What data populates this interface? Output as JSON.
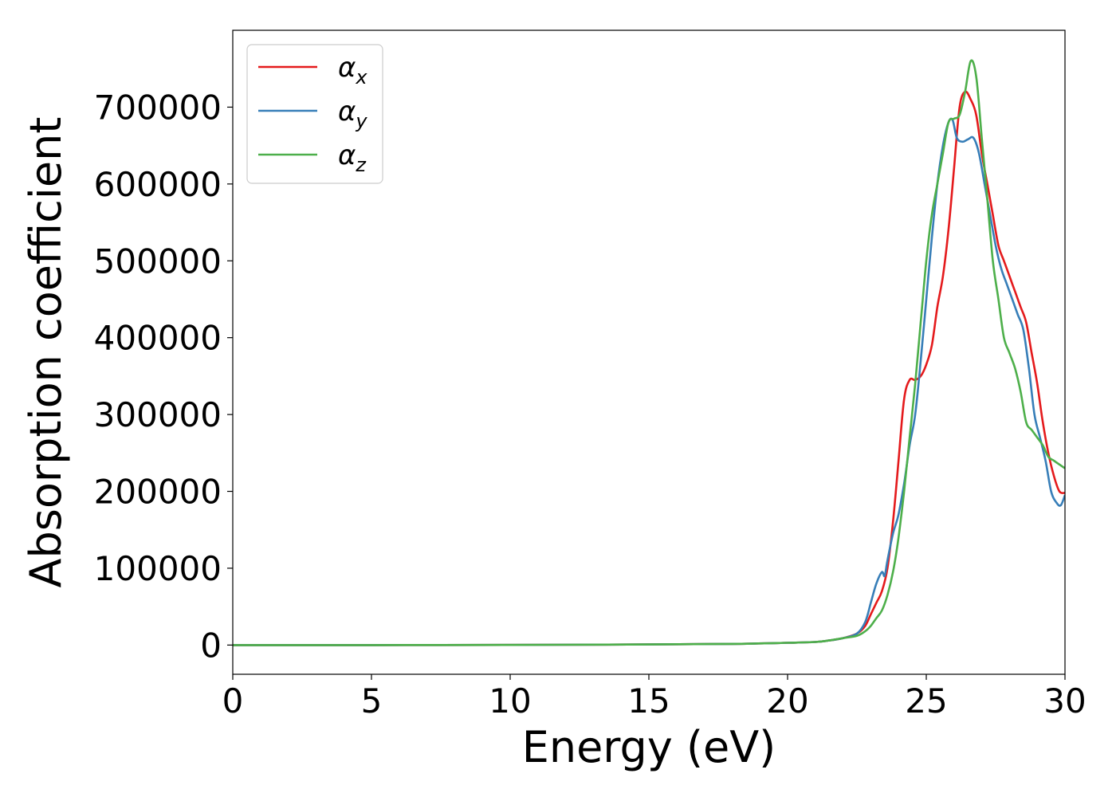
{
  "chart_data": {
    "type": "line",
    "xlabel": "Energy (eV)",
    "ylabel": "Absorption coefficient",
    "xlim": [
      0,
      30
    ],
    "ylim": [
      -38000,
      800000
    ],
    "xticks": [
      0,
      5,
      10,
      15,
      20,
      25,
      30
    ],
    "xtick_labels": [
      "0",
      "5",
      "10",
      "15",
      "20",
      "25",
      "30"
    ],
    "yticks": [
      0,
      100000,
      200000,
      300000,
      400000,
      500000,
      600000,
      700000
    ],
    "ytick_labels": [
      "0",
      "100000",
      "200000",
      "300000",
      "400000",
      "500000",
      "600000",
      "700000"
    ],
    "grid": false,
    "legend_position": "top-left",
    "series": [
      {
        "name": "α_x",
        "label_main": "α",
        "label_sub": "x",
        "color": "#e41a1c",
        "x": [
          0,
          5,
          10,
          15,
          18,
          20,
          21,
          21.5,
          22,
          22.5,
          22.8,
          23.0,
          23.2,
          23.4,
          23.6,
          23.8,
          24.0,
          24.2,
          24.4,
          24.6,
          24.8,
          25.0,
          25.2,
          25.4,
          25.6,
          25.8,
          26.0,
          26.2,
          26.4,
          26.6,
          26.8,
          27.0,
          27.2,
          27.4,
          27.6,
          27.8,
          28.0,
          28.2,
          28.4,
          28.6,
          28.8,
          29.0,
          29.2,
          29.4,
          29.6,
          29.8,
          30.0
        ],
        "y": [
          0,
          0,
          200,
          800,
          1500,
          3000,
          4000,
          6000,
          9000,
          15000,
          25000,
          40000,
          55000,
          70000,
          100000,
          160000,
          240000,
          320000,
          345000,
          345000,
          350000,
          365000,
          390000,
          440000,
          480000,
          540000,
          620000,
          700000,
          720000,
          710000,
          690000,
          640000,
          600000,
          560000,
          520000,
          500000,
          480000,
          460000,
          440000,
          420000,
          380000,
          340000,
          290000,
          250000,
          220000,
          200000,
          198000
        ]
      },
      {
        "name": "α_y",
        "label_main": "α",
        "label_sub": "y",
        "color": "#377eb8",
        "x": [
          0,
          5,
          10,
          15,
          18,
          20,
          21,
          21.5,
          22,
          22.5,
          22.8,
          23.0,
          23.2,
          23.4,
          23.5,
          23.6,
          23.8,
          24.0,
          24.2,
          24.4,
          24.6,
          24.8,
          25.0,
          25.2,
          25.4,
          25.6,
          25.8,
          25.95,
          26.1,
          26.3,
          26.5,
          26.7,
          26.9,
          27.1,
          27.3,
          27.5,
          27.7,
          27.9,
          28.1,
          28.3,
          28.5,
          28.7,
          28.9,
          29.1,
          29.3,
          29.5,
          29.7,
          29.85,
          30.0
        ],
        "y": [
          0,
          0,
          200,
          800,
          1500,
          3000,
          4000,
          6000,
          9000,
          15000,
          30000,
          55000,
          80000,
          95000,
          90000,
          110000,
          145000,
          170000,
          210000,
          260000,
          300000,
          370000,
          450000,
          530000,
          600000,
          650000,
          680000,
          683000,
          660000,
          655000,
          658000,
          660000,
          640000,
          600000,
          560000,
          520000,
          490000,
          470000,
          450000,
          430000,
          410000,
          360000,
          300000,
          270000,
          240000,
          200000,
          185000,
          182000,
          195000
        ]
      },
      {
        "name": "α_z",
        "label_main": "α",
        "label_sub": "z",
        "color": "#4daf4a",
        "x": [
          0,
          5,
          10,
          15,
          18,
          20,
          21,
          21.5,
          22,
          22.5,
          22.8,
          23.0,
          23.2,
          23.4,
          23.6,
          23.8,
          24.0,
          24.2,
          24.4,
          24.6,
          24.8,
          25.0,
          25.2,
          25.4,
          25.6,
          25.8,
          26.0,
          26.2,
          26.4,
          26.6,
          26.8,
          27.0,
          27.2,
          27.4,
          27.6,
          27.8,
          28.0,
          28.2,
          28.4,
          28.6,
          28.8,
          29.0,
          29.2,
          29.4,
          29.6,
          29.8,
          30.0
        ],
        "y": [
          0,
          0,
          200,
          800,
          1500,
          3000,
          4000,
          6000,
          9000,
          12000,
          18000,
          25000,
          35000,
          45000,
          65000,
          95000,
          140000,
          200000,
          270000,
          340000,
          420000,
          500000,
          560000,
          600000,
          640000,
          680000,
          685000,
          690000,
          720000,
          760000,
          740000,
          660000,
          580000,
          500000,
          450000,
          400000,
          380000,
          360000,
          330000,
          290000,
          280000,
          270000,
          260000,
          245000,
          240000,
          235000,
          230000
        ]
      }
    ]
  }
}
